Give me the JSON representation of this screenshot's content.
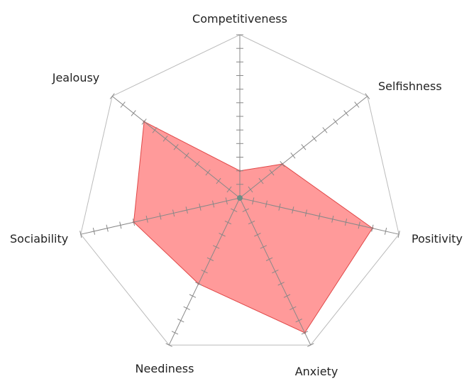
{
  "chart_data": {
    "type": "radar",
    "axes": [
      "Competitiveness",
      "Selfishness",
      "Positivity",
      "Anxiety",
      "Neediness",
      "Sociability",
      "Jealousy"
    ],
    "series": [
      {
        "values": [
          2,
          4,
          10,
          11,
          7,
          8,
          9
        ]
      }
    ],
    "rmax": 12,
    "tick_step": 1,
    "grid": "outer-polygon-only",
    "colors": {
      "fill": "#ff6f6f",
      "stroke": "#e04848",
      "axis": "#888888",
      "outline": "#bbbbbb",
      "center": "#6e8d86"
    }
  }
}
